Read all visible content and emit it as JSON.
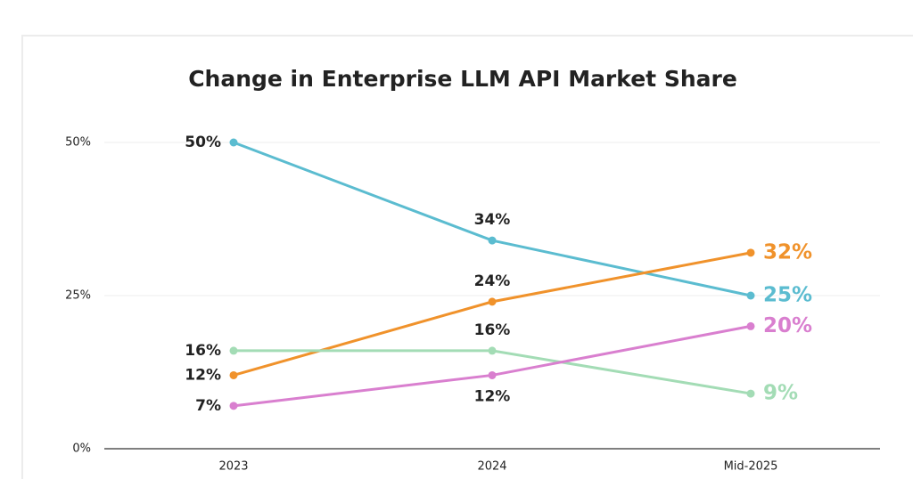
{
  "chart_data": {
    "type": "line",
    "title": "Change in Enterprise LLM API Market Share",
    "categories": [
      "2023",
      "2024",
      "Mid-2025"
    ],
    "ylim": [
      0,
      50
    ],
    "yticks": [
      {
        "value": 0,
        "label": "0%"
      },
      {
        "value": 25,
        "label": "25%"
      },
      {
        "value": 50,
        "label": "50%"
      }
    ],
    "grid": true,
    "series": [
      {
        "color": "#5bbcd0",
        "values": [
          50,
          34,
          25
        ],
        "value_labels": [
          "50%",
          "34%",
          "25%"
        ]
      },
      {
        "color": "#f0922b",
        "values": [
          12,
          24,
          32
        ],
        "value_labels": [
          "12%",
          "24%",
          "32%"
        ]
      },
      {
        "color": "#a3dcb5",
        "values": [
          16,
          16,
          9
        ],
        "value_labels": [
          "16%",
          "16%",
          "9%"
        ]
      },
      {
        "color": "#d97fcf",
        "values": [
          7,
          12,
          20
        ],
        "value_labels": [
          "7%",
          "12%",
          "20%"
        ]
      }
    ]
  }
}
